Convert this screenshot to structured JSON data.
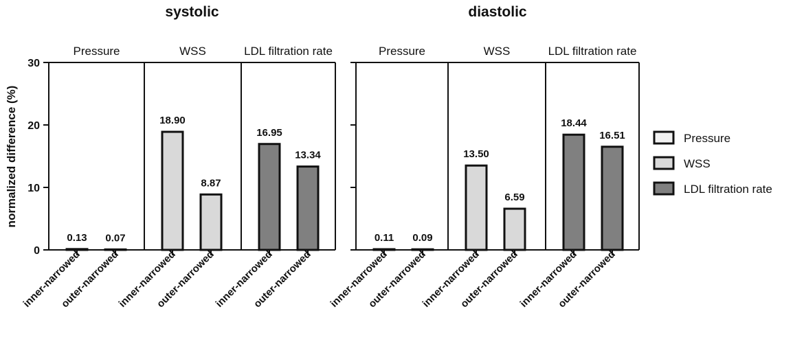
{
  "chart_data": {
    "type": "bar",
    "ylabel": "normalized difference (%)",
    "ylim": [
      0,
      30
    ],
    "yticks": [
      "0",
      "10",
      "20",
      "30"
    ],
    "categories": [
      "inner-narrowed",
      "outer-narrowed"
    ],
    "groups": [
      "Pressure",
      "WSS",
      "LDL filtration rate"
    ],
    "legend": {
      "position": "right",
      "entries": [
        {
          "name": "Pressure",
          "color": "#f2f2f2"
        },
        {
          "name": "WSS",
          "color": "#d9d9d9"
        },
        {
          "name": "LDL filtration rate",
          "color": "#808080"
        }
      ]
    },
    "panels": [
      {
        "title": "systolic",
        "series": [
          {
            "name": "Pressure",
            "values": [
              0.13,
              0.07
            ],
            "labels": [
              "0.13",
              "0.07"
            ]
          },
          {
            "name": "WSS",
            "values": [
              18.9,
              8.87
            ],
            "labels": [
              "18.90",
              "8.87"
            ]
          },
          {
            "name": "LDL filtration rate",
            "values": [
              16.95,
              13.34
            ],
            "labels": [
              "16.95",
              "13.34"
            ]
          }
        ]
      },
      {
        "title": "diastolic",
        "series": [
          {
            "name": "Pressure",
            "values": [
              0.11,
              0.09
            ],
            "labels": [
              "0.11",
              "0.09"
            ]
          },
          {
            "name": "WSS",
            "values": [
              13.5,
              6.59
            ],
            "labels": [
              "13.50",
              "6.59"
            ]
          },
          {
            "name": "LDL filtration rate",
            "values": [
              18.44,
              16.51
            ],
            "labels": [
              "18.44",
              "16.51"
            ]
          }
        ]
      }
    ]
  }
}
